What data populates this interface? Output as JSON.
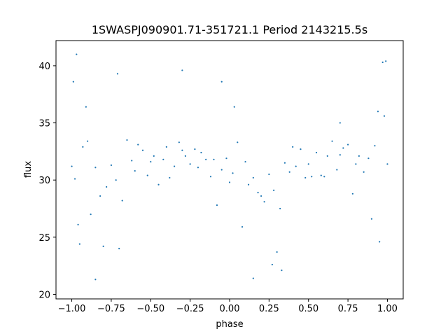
{
  "chart_data": {
    "type": "scatter",
    "title": "1SWASPJ090901.71-351721.1 Period 2143215.5s",
    "xlabel": "phase",
    "ylabel": "flux",
    "xlim": [
      -1.1,
      1.1
    ],
    "ylim": [
      19.6,
      42.2
    ],
    "xticks": [
      -1.0,
      -0.75,
      -0.5,
      -0.25,
      0.0,
      0.25,
      0.5,
      0.75,
      1.0
    ],
    "xtick_labels": [
      "−1.00",
      "−0.75",
      "−0.50",
      "−0.25",
      "0.00",
      "0.25",
      "0.50",
      "0.75",
      "1.00"
    ],
    "yticks": [
      20,
      25,
      30,
      35,
      40
    ],
    "ytick_labels": [
      "20",
      "25",
      "30",
      "35",
      "40"
    ],
    "grid": false,
    "point_color": "#1f77b4",
    "series": [
      {
        "x": [
          -1.0,
          -0.98,
          -0.96,
          -0.95,
          -0.93,
          -0.9,
          -0.88,
          -0.85,
          -0.82,
          -0.8,
          -0.78,
          -0.75,
          -0.72,
          -0.7,
          -0.68,
          -0.65,
          -0.62,
          -0.6,
          -0.58,
          -0.55,
          -0.52,
          -0.5,
          -0.48,
          -0.45,
          -0.42,
          -0.4,
          -0.38,
          -0.35,
          -0.32,
          -0.3,
          -0.28,
          -0.25,
          -0.22,
          -0.2,
          -0.18,
          -0.15,
          -0.12,
          -0.1,
          -0.08,
          -0.05,
          -0.02,
          0.0,
          0.02,
          0.05,
          0.08,
          0.1,
          0.12,
          0.15,
          0.18,
          0.2,
          0.22,
          0.25,
          0.28,
          0.3,
          0.32,
          0.35,
          0.38,
          0.4,
          0.42,
          0.45,
          0.48,
          0.5,
          0.52,
          0.55,
          0.58,
          0.6,
          0.62,
          0.65,
          0.68,
          0.7,
          0.72,
          0.75,
          0.78,
          0.8,
          0.82,
          0.85,
          0.88,
          0.9,
          0.92,
          0.95,
          0.98,
          1.0,
          -0.97,
          -0.91,
          -0.71,
          -0.3,
          -0.05,
          0.03,
          0.27,
          0.33,
          0.7,
          0.94,
          0.97,
          -0.99,
          0.99,
          -0.85,
          0.15
        ],
        "y": [
          31.2,
          30.1,
          26.1,
          24.4,
          32.9,
          33.4,
          27.0,
          31.1,
          28.6,
          24.2,
          29.4,
          31.3,
          30.0,
          24.0,
          28.2,
          33.5,
          31.7,
          30.8,
          33.1,
          32.6,
          30.4,
          31.6,
          32.1,
          29.6,
          31.8,
          32.9,
          30.2,
          31.2,
          33.3,
          32.6,
          32.1,
          31.4,
          32.7,
          31.1,
          32.4,
          31.8,
          30.3,
          31.8,
          27.8,
          30.9,
          31.9,
          29.8,
          30.6,
          33.3,
          25.9,
          31.6,
          29.6,
          30.2,
          28.9,
          28.6,
          28.1,
          30.5,
          29.1,
          23.7,
          27.5,
          31.5,
          30.7,
          32.9,
          31.2,
          32.7,
          30.2,
          31.4,
          30.3,
          32.4,
          30.4,
          30.3,
          32.1,
          33.4,
          30.9,
          32.2,
          32.8,
          33.1,
          28.8,
          31.4,
          32.1,
          30.7,
          31.9,
          26.6,
          33.0,
          24.6,
          35.6,
          31.4,
          41.0,
          36.4,
          39.3,
          39.6,
          38.6,
          36.4,
          22.6,
          22.1,
          35.0,
          36.0,
          40.3,
          38.6,
          40.4,
          21.3,
          21.4
        ],
        "n": 97
      }
    ]
  }
}
